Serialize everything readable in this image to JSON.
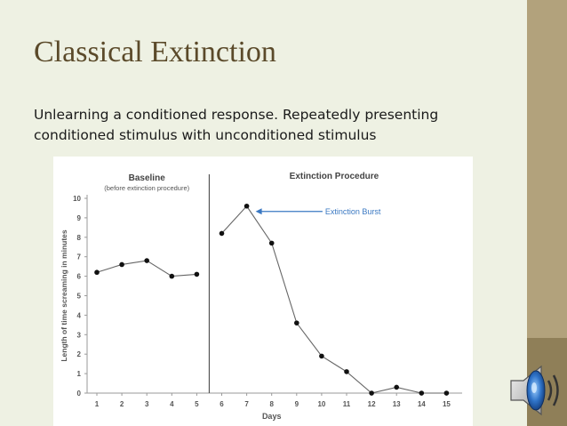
{
  "slide": {
    "title": "Classical Extinction",
    "body": "Unlearning a conditioned response. Repeatedly presenting conditioned stimulus with unconditioned stimulus",
    "speaker_icon": "speaker-audio-icon"
  },
  "colors": {
    "title": "#5b4a2a",
    "background": "#eef1e3",
    "accent_strip": "#b2a27c",
    "accent_dark": "#8f7f58",
    "annotation": "#3a78c2"
  },
  "chart_data": {
    "type": "line",
    "panels": [
      {
        "title": "Baseline",
        "subtitle": "(before extinction procedure)",
        "x": [
          1,
          2,
          3,
          4,
          5
        ],
        "y": [
          6.2,
          6.6,
          6.8,
          6.0,
          6.1
        ]
      },
      {
        "title": "Extinction Procedure",
        "subtitle": "",
        "x": [
          6,
          7,
          8,
          9,
          10,
          11,
          12,
          13,
          14,
          15
        ],
        "y": [
          8.2,
          9.6,
          7.7,
          3.6,
          1.9,
          1.1,
          0.0,
          0.3,
          0.0,
          0.0
        ]
      }
    ],
    "xlabel": "Days",
    "ylabel": "Length of time screaming in minutes",
    "xticks": [
      "1",
      "2",
      "3",
      "4",
      "5",
      "6",
      "7",
      "8",
      "9",
      "10",
      "11",
      "12",
      "13",
      "14",
      "15"
    ],
    "yticks": [
      "0",
      "1",
      "2",
      "3",
      "4",
      "5",
      "6",
      "7",
      "8",
      "9",
      "10"
    ],
    "ylim": [
      0,
      10
    ],
    "annotation": {
      "text": "Extinction Burst",
      "target_day": 7,
      "target_value": 9.6
    },
    "phase_divider_after_day": 5
  }
}
